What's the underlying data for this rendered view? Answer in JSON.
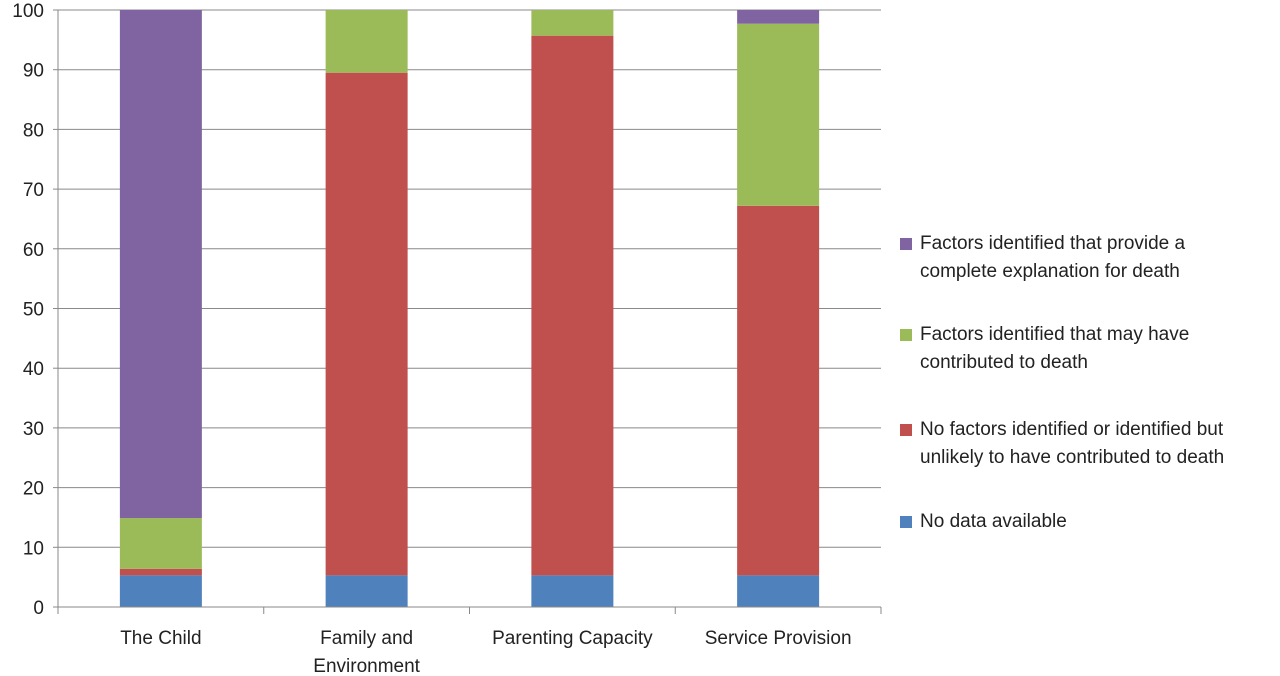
{
  "chart_data": {
    "type": "bar",
    "stacked": true,
    "categories": [
      "The Child",
      "Family and Environment",
      "Parenting Capacity",
      "Service Provision"
    ],
    "category_lines": [
      [
        "The Child"
      ],
      [
        "Family and",
        "Environment"
      ],
      [
        "Parenting Capacity"
      ],
      [
        "Service Provision"
      ]
    ],
    "series": [
      {
        "name": "No data available",
        "color": "#4F81BD",
        "values": [
          5.3,
          5.3,
          5.3,
          5.3
        ]
      },
      {
        "name": "No factors identified or identified but unlikely to have contributed to death",
        "color": "#C0504D",
        "values": [
          1.1,
          84.2,
          90.4,
          61.9
        ]
      },
      {
        "name": "Factors identified that may have contributed to death",
        "color": "#9BBB59",
        "values": [
          8.5,
          10.5,
          4.3,
          30.5
        ]
      },
      {
        "name": "Factors identified that provide a complete explanation for death",
        "color": "#8064A2",
        "values": [
          85.1,
          0,
          0,
          2.3
        ]
      }
    ],
    "ylim": [
      0,
      100
    ],
    "yticks": [
      0,
      10,
      20,
      30,
      40,
      50,
      60,
      70,
      80,
      90,
      100
    ],
    "grid": true,
    "legend_position": "right"
  },
  "legend": {
    "items": [
      {
        "lines": [
          "Factors identified that provide a",
          "complete explanation for death"
        ],
        "color": "#8064A2"
      },
      {
        "lines": [
          "Factors identified that may have",
          "contributed to death"
        ],
        "color": "#9BBB59"
      },
      {
        "lines": [
          "No factors identified or identified but",
          "unlikely to have contributed to death"
        ],
        "color": "#C0504D"
      },
      {
        "lines": [
          "No data available"
        ],
        "color": "#4F81BD"
      }
    ]
  }
}
